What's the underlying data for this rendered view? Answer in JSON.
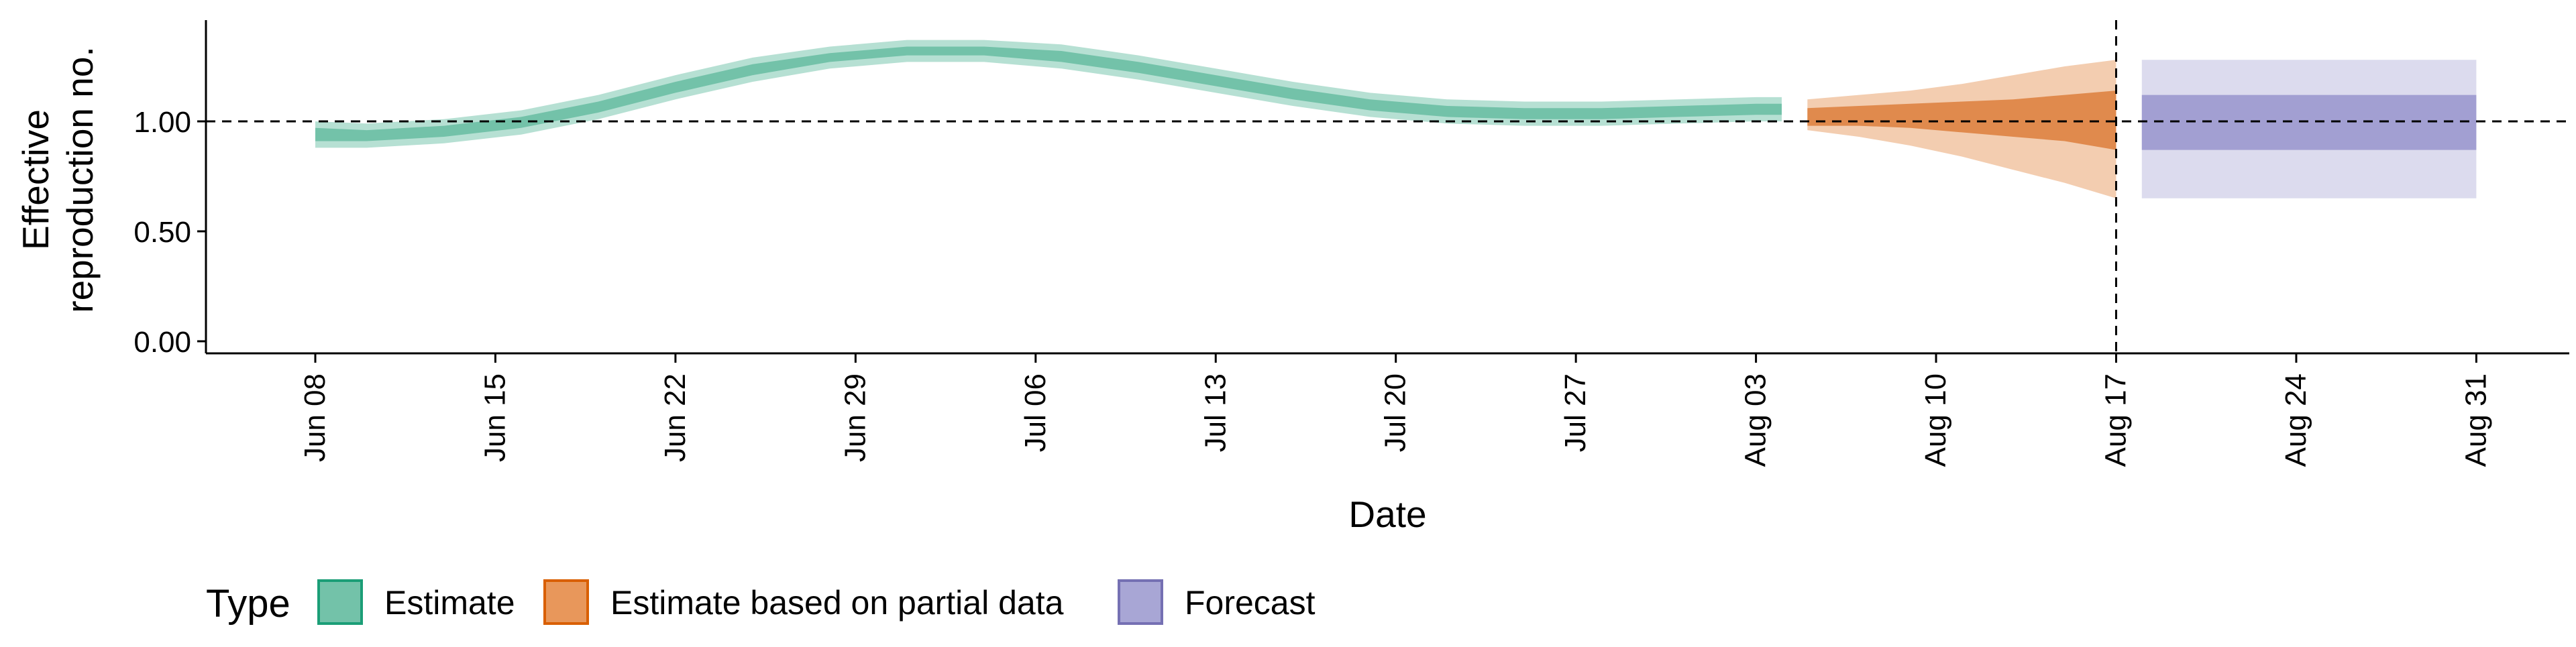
{
  "chart_data": {
    "type": "area",
    "xlabel": "Date",
    "ylabel_lines": [
      "Effective",
      "reproduction no."
    ],
    "x_ticks": [
      "Jun 08",
      "Jun 15",
      "Jun 22",
      "Jun 29",
      "Jul 06",
      "Jul 13",
      "Jul 20",
      "Jul 27",
      "Aug 03",
      "Aug 10",
      "Aug 17",
      "Aug 24",
      "Aug 31"
    ],
    "y_ticks": [
      "0.00",
      "0.50",
      "1.00"
    ],
    "ylim": [
      0,
      1.5
    ],
    "reference_hline": 1.0,
    "reference_vline_date": "Aug 17",
    "grid": false,
    "legend_position": "bottom-left",
    "legend_title": "Type",
    "legend": [
      {
        "label": "Estimate",
        "fill": "#73C2A9",
        "stroke": "#1B9E77"
      },
      {
        "label": "Estimate based on partial data",
        "fill": "#E8975B",
        "stroke": "#D95F02"
      },
      {
        "label": "Forecast",
        "fill": "#A8A6D5",
        "stroke": "#7570B3"
      }
    ],
    "series": [
      {
        "type": "Estimate",
        "color_inner": "#73C2A9",
        "color_outer": "#B6E0D3",
        "dates": [
          "Jun 08",
          "Jun 10",
          "Jun 13",
          "Jun 16",
          "Jun 19",
          "Jun 22",
          "Jun 25",
          "Jun 28",
          "Jul 01",
          "Jul 04",
          "Jul 07",
          "Jul 10",
          "Jul 13",
          "Jul 16",
          "Jul 19",
          "Jul 22",
          "Jul 25",
          "Jul 28",
          "Jul 31",
          "Aug 03",
          "Aug 04"
        ],
        "median": [
          0.94,
          0.93,
          0.95,
          0.99,
          1.06,
          1.15,
          1.23,
          1.29,
          1.32,
          1.32,
          1.29,
          1.24,
          1.18,
          1.12,
          1.07,
          1.04,
          1.03,
          1.03,
          1.04,
          1.05,
          1.05
        ],
        "ci50_lower": [
          0.91,
          0.91,
          0.93,
          0.97,
          1.04,
          1.13,
          1.21,
          1.27,
          1.3,
          1.3,
          1.27,
          1.22,
          1.16,
          1.1,
          1.05,
          1.02,
          1.01,
          1.01,
          1.02,
          1.03,
          1.03
        ],
        "ci50_upper": [
          0.97,
          0.96,
          0.98,
          1.02,
          1.09,
          1.18,
          1.26,
          1.31,
          1.34,
          1.34,
          1.32,
          1.27,
          1.21,
          1.15,
          1.1,
          1.07,
          1.06,
          1.06,
          1.07,
          1.08,
          1.08
        ],
        "ci90_lower": [
          0.88,
          0.88,
          0.9,
          0.94,
          1.01,
          1.1,
          1.18,
          1.24,
          1.27,
          1.27,
          1.24,
          1.19,
          1.13,
          1.07,
          1.02,
          0.99,
          0.98,
          0.98,
          0.99,
          1.0,
          1.0
        ],
        "ci90_upper": [
          1.0,
          0.99,
          1.01,
          1.05,
          1.12,
          1.21,
          1.29,
          1.34,
          1.37,
          1.37,
          1.35,
          1.3,
          1.24,
          1.18,
          1.13,
          1.1,
          1.09,
          1.09,
          1.1,
          1.11,
          1.11
        ]
      },
      {
        "type": "Estimate based on partial data",
        "color_inner": "#E08A4D",
        "color_outer": "#F3CDB0",
        "dates": [
          "Aug 05",
          "Aug 07",
          "Aug 09",
          "Aug 11",
          "Aug 13",
          "Aug 15",
          "Aug 17"
        ],
        "median": [
          1.02,
          1.03,
          1.03,
          1.02,
          1.02,
          1.02,
          1.01
        ],
        "ci50_lower": [
          0.98,
          0.98,
          0.97,
          0.95,
          0.93,
          0.91,
          0.87
        ],
        "ci50_upper": [
          1.06,
          1.07,
          1.08,
          1.09,
          1.1,
          1.12,
          1.14
        ],
        "ci90_lower": [
          0.96,
          0.93,
          0.89,
          0.84,
          0.78,
          0.72,
          0.65
        ],
        "ci90_upper": [
          1.1,
          1.12,
          1.14,
          1.17,
          1.21,
          1.25,
          1.28
        ]
      },
      {
        "type": "Forecast",
        "color_inner": "#A29FD2",
        "color_outer": "#DCDBEE",
        "dates": [
          "Aug 18",
          "Aug 31"
        ],
        "median": [
          1.0,
          1.0
        ],
        "ci50_lower": [
          0.87,
          0.87
        ],
        "ci50_upper": [
          1.12,
          1.12
        ],
        "ci90_lower": [
          0.65,
          0.65
        ],
        "ci90_upper": [
          1.28,
          1.28
        ]
      }
    ]
  }
}
